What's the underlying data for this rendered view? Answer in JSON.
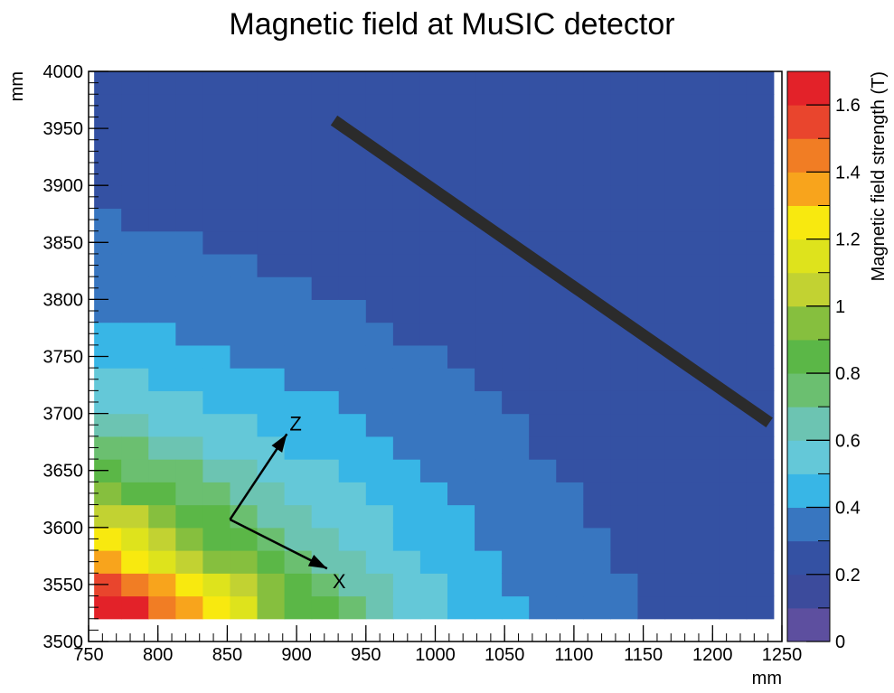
{
  "chart_data": {
    "type": "heatmap",
    "title": "Magnetic field at MuSIC detector",
    "xlabel": "mm",
    "ylabel": "mm",
    "xlim": [
      750,
      1250
    ],
    "ylim": [
      3500,
      4000
    ],
    "x_ticks": [
      750,
      800,
      850,
      900,
      950,
      1000,
      1050,
      1100,
      1150,
      1200,
      1250
    ],
    "y_ticks": [
      3500,
      3550,
      3600,
      3650,
      3700,
      3750,
      3800,
      3850,
      3900,
      3950,
      4000
    ],
    "grid": false,
    "colorbar": {
      "label": "Magnetic field strength (T)",
      "range": [
        0,
        1.7
      ],
      "tick_labels": [
        "0",
        "0.2",
        "0.4",
        "0.6",
        "0.8",
        "1",
        "1.2",
        "1.4",
        "1.6"
      ],
      "tick_values": [
        0,
        0.2,
        0.4,
        0.6,
        0.8,
        1.0,
        1.2,
        1.4,
        1.6
      ],
      "palette": [
        "#5d4f9f",
        "#3c4b9c",
        "#3451a3",
        "#3876c0",
        "#38b6e6",
        "#64c8d8",
        "#6cc4b2",
        "#6bbf70",
        "#5bb747",
        "#86bf3e",
        "#c2d232",
        "#dee31c",
        "#f8e90f",
        "#f8a41c",
        "#f17d24",
        "#e9452d",
        "#e32229"
      ]
    },
    "field_overlay": {
      "x_range": [
        754,
        1244
      ],
      "y_range": [
        3520,
        4000
      ]
    },
    "detector_line": {
      "from": {
        "x": 927,
        "y": 3957
      },
      "to": {
        "x": 1241,
        "y": 3692
      }
    },
    "axes_arrows": {
      "origin": {
        "x": 852,
        "y": 3607
      },
      "z_tip": {
        "x": 893,
        "y": 3682
      },
      "x_tip": {
        "x": 922,
        "y": 3564
      },
      "z_label": "Z",
      "x_label": "X"
    }
  }
}
